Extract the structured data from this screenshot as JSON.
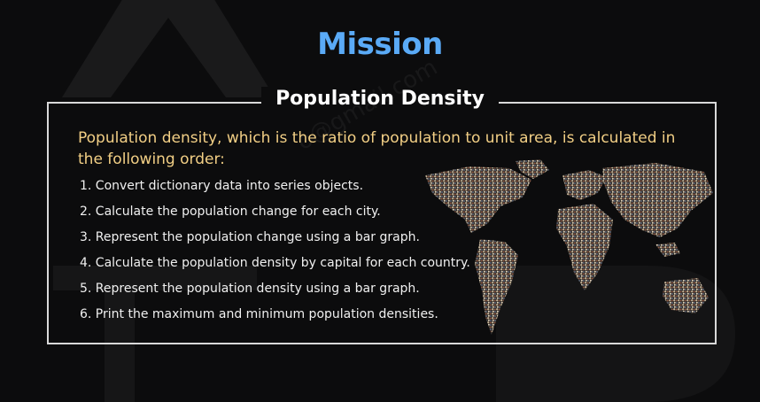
{
  "slide": {
    "mission_title": "Mission",
    "subtitle": "Population Density",
    "intro": "Population density, which is the ratio of population to unit area, is calculated in the following order:",
    "steps": [
      "1. Convert dictionary data into series objects.",
      "2. Calculate the population change for each city.",
      "3. Represent the population change using a bar graph.",
      "4. Calculate the population density by capital for each country.",
      "5. Represent the population density using a bar graph.",
      "6. Print the maximum and minimum population densities."
    ],
    "watermark": "o@gmail.com"
  },
  "colors": {
    "mission_title": "#5aaaf6",
    "intro_text": "#f2cf85",
    "step_text": "#f0f0f0",
    "frame_border": "#d9d9d9",
    "background": "#0c0c0d"
  },
  "icons": {
    "map": "world-map-of-people-image"
  }
}
